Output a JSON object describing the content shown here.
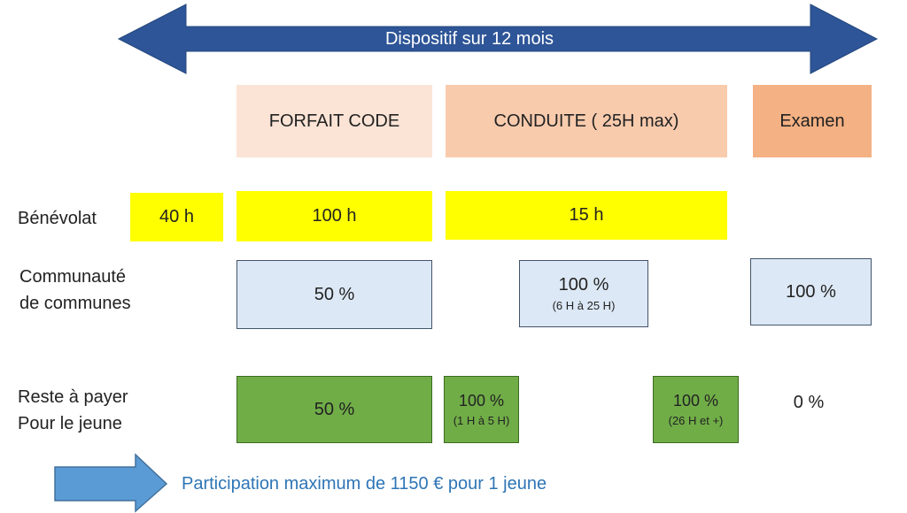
{
  "top_arrow": {
    "label": "Dispositif sur 12 mois",
    "color": "#2e5597"
  },
  "phases": {
    "forfait": "FORFAIT CODE",
    "conduite": "CONDUITE ( 25H max)",
    "examen": "Examen"
  },
  "rows": {
    "benevolat": {
      "label": "Bénévolat",
      "pre": "40 h",
      "forfait": "100 h",
      "conduite": "15 h"
    },
    "communaute": {
      "label_line1": "Communauté",
      "label_line2": "de communes",
      "forfait": "50 %",
      "conduite_value": "100 %",
      "conduite_note": "(6 H à 25 H)",
      "examen": "100 %"
    },
    "reste": {
      "label_line1": "Reste à payer",
      "label_line2": "Pour le jeune",
      "forfait": "50 %",
      "conduite_a_value": "100 %",
      "conduite_a_note": "(1 H à 5 H)",
      "conduite_b_value": "100 %",
      "conduite_b_note": "(26 H et +)",
      "examen": "0 %"
    }
  },
  "footer": {
    "text": "Participation maximum de 1150 € pour 1 jeune",
    "color": "#2e75b6"
  }
}
